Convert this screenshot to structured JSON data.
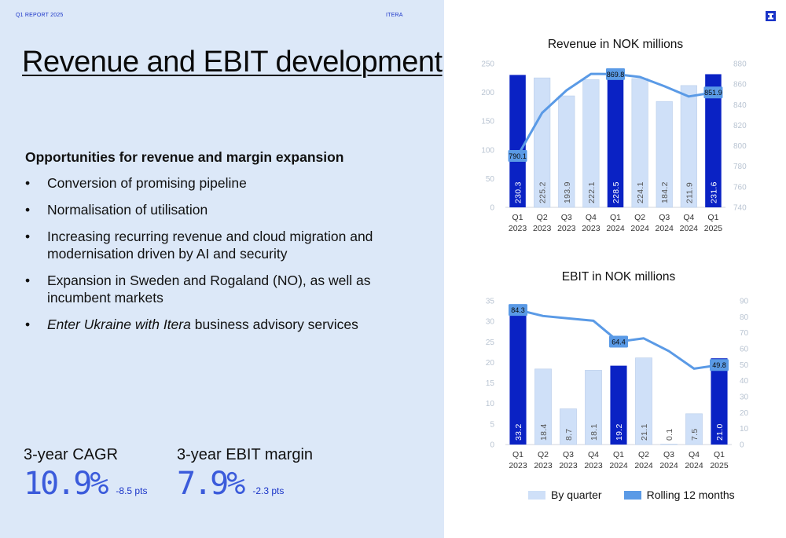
{
  "header": {
    "report": "Q1 REPORT 2025",
    "company": "ITERA"
  },
  "title": "Revenue and EBIT development",
  "subheading": "Opportunities for revenue and margin expansion",
  "bullets": [
    "Conversion of promising pipeline",
    "Normalisation of utilisation",
    "Increasing recurring revenue and cloud migration and modernisation driven by AI and security",
    "Expansion in Sweden and Rogaland (NO), as well as incumbent markets"
  ],
  "bullet_last": {
    "italic": "Enter Ukraine with Itera",
    "rest": " business advisory services"
  },
  "kpis": [
    {
      "label": "3-year CAGR",
      "value": "10.9%",
      "delta": "-8.5 pts"
    },
    {
      "label": "3-year EBIT margin",
      "value": "7.9%",
      "delta": "-2.3 pts"
    }
  ],
  "colors": {
    "dark": "#0a22c4",
    "light": "#cfe0f8",
    "line": "#5a9ae6",
    "panel": "#dce8f8",
    "accent": "#1a34c8"
  },
  "legend": {
    "by_quarter": "By quarter",
    "rolling": "Rolling 12 months"
  },
  "chart_data": [
    {
      "type": "bar",
      "title": "Revenue in NOK millions",
      "categories": [
        [
          "Q1",
          "2023"
        ],
        [
          "Q2",
          "2023"
        ],
        [
          "Q3",
          "2023"
        ],
        [
          "Q4",
          "2023"
        ],
        [
          "Q1",
          "2024"
        ],
        [
          "Q2",
          "2024"
        ],
        [
          "Q3",
          "2024"
        ],
        [
          "Q4",
          "2024"
        ],
        [
          "Q1",
          "2025"
        ]
      ],
      "values": [
        230.3,
        225.2,
        193.9,
        222.1,
        228.5,
        224.1,
        184.2,
        211.9,
        231.6
      ],
      "value_labels": [
        "230.3",
        "225.2",
        "193.9",
        "222.1",
        "228.5",
        "224.1",
        "184.2",
        "211.9",
        "231.6"
      ],
      "highlight": [
        true,
        false,
        false,
        false,
        true,
        false,
        false,
        false,
        true
      ],
      "ylim": [
        0,
        250
      ],
      "yticks": [
        0,
        50,
        100,
        150,
        200,
        250
      ],
      "y2lim": [
        740,
        880
      ],
      "y2ticks": [
        740,
        760,
        780,
        800,
        820,
        840,
        860,
        880
      ],
      "line_series": {
        "name": "Rolling 12 months",
        "values": [
          790.1,
          832,
          854,
          870,
          869.8,
          867,
          858,
          848,
          851.9
        ]
      },
      "line_labels": [
        {
          "index": 0,
          "text": "790.1"
        },
        {
          "index": 4,
          "text": "869.8"
        },
        {
          "index": 8,
          "text": "851.9"
        }
      ]
    },
    {
      "type": "bar",
      "title": "EBIT in NOK millions",
      "categories": [
        [
          "Q1",
          "2023"
        ],
        [
          "Q2",
          "2023"
        ],
        [
          "Q3",
          "2023"
        ],
        [
          "Q4",
          "2023"
        ],
        [
          "Q1",
          "2024"
        ],
        [
          "Q2",
          "2024"
        ],
        [
          "Q3",
          "2024"
        ],
        [
          "Q4",
          "2024"
        ],
        [
          "Q1",
          "2025"
        ]
      ],
      "values": [
        33.2,
        18.4,
        8.7,
        18.1,
        19.2,
        21.1,
        0.1,
        7.5,
        21.0
      ],
      "value_labels": [
        "33.2",
        "18.4",
        "8.7",
        "18.1",
        "19.2",
        "21.1",
        "0.1",
        "7.5",
        "21.0"
      ],
      "highlight": [
        true,
        false,
        false,
        false,
        true,
        false,
        false,
        false,
        true
      ],
      "ylim": [
        0,
        35
      ],
      "yticks": [
        0,
        5,
        10,
        15,
        20,
        25,
        30,
        35
      ],
      "y2lim": [
        0,
        90
      ],
      "y2ticks": [
        0,
        10,
        20,
        30,
        40,
        50,
        60,
        70,
        80,
        90
      ],
      "line_series": {
        "name": "Rolling 12 months",
        "values": [
          84.3,
          80.5,
          79,
          77.5,
          64.4,
          66.5,
          58.5,
          47.5,
          49.8
        ]
      },
      "line_labels": [
        {
          "index": 0,
          "text": "84.3"
        },
        {
          "index": 4,
          "text": "64.4"
        },
        {
          "index": 8,
          "text": "49.8"
        }
      ]
    }
  ]
}
